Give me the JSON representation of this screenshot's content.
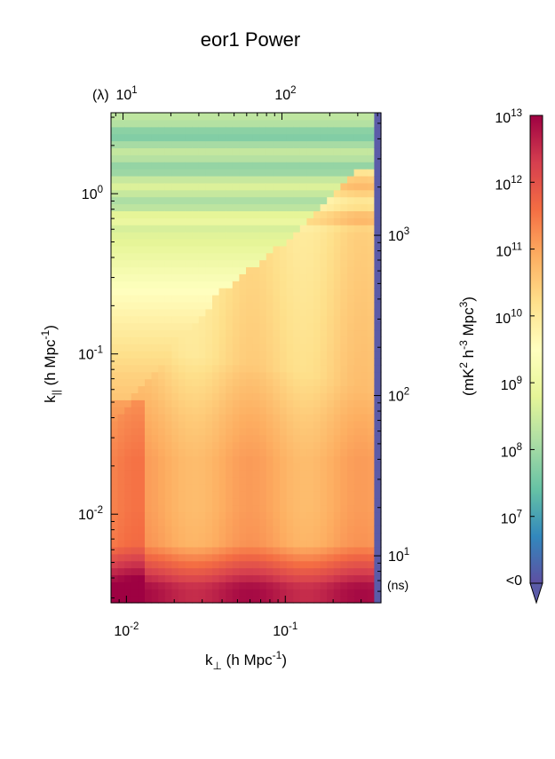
{
  "chart_data": {
    "type": "heatmap",
    "title": "eor1 Power",
    "xlabel": {
      "main": "k",
      "sub": "⊥",
      "post": " (h Mpc",
      "sup": "-1",
      "end": ")"
    },
    "ylabel": {
      "main": "k",
      "sub": "||",
      "post": " (h Mpc",
      "sup": "-1",
      "end": ")"
    },
    "x_scale": "log",
    "y_scale": "log",
    "xlim": [
      0.008,
      0.4
    ],
    "ylim": [
      0.0028,
      3.2
    ],
    "x_ticks": [
      {
        "value": 0.01,
        "base": "10",
        "exp": "-2"
      },
      {
        "value": 0.1,
        "base": "10",
        "exp": "-1"
      }
    ],
    "y_ticks": [
      {
        "value": 0.01,
        "base": "10",
        "exp": "-2"
      },
      {
        "value": 0.1,
        "base": "10",
        "exp": "-1"
      },
      {
        "value": 1,
        "base": "10",
        "exp": "0"
      }
    ],
    "top_axis": {
      "unit_label": "(λ)",
      "ticks": [
        {
          "value": 10,
          "base": "10",
          "exp": "1"
        },
        {
          "value": 100,
          "base": "10",
          "exp": "2"
        }
      ]
    },
    "right_axis": {
      "unit_label": "(ns)",
      "ticks": [
        {
          "value": 10,
          "base": "10",
          "exp": "1"
        },
        {
          "value": 100,
          "base": "10",
          "exp": "2"
        },
        {
          "value": 1000,
          "base": "10",
          "exp": "3"
        }
      ]
    },
    "colorbar": {
      "label": {
        "pre": "(mK",
        "sup1": "2",
        "mid1": " h",
        "sup2": "-3",
        "mid2": " Mpc",
        "sup3": "3",
        "end": ")"
      },
      "scale": "log",
      "range": [
        1000000,
        10000000000000
      ],
      "ticks": [
        {
          "value": 10000000,
          "base": "10",
          "exp": "7"
        },
        {
          "value": 100000000,
          "base": "10",
          "exp": "8"
        },
        {
          "value": 1000000000,
          "base": "10",
          "exp": "9"
        },
        {
          "value": 10000000000,
          "base": "10",
          "exp": "10"
        },
        {
          "value": 100000000000,
          "base": "10",
          "exp": "11"
        },
        {
          "value": 1000000000000,
          "base": "10",
          "exp": "12"
        },
        {
          "value": 10000000000000,
          "base": "10",
          "exp": "13"
        }
      ],
      "below_label": "<0",
      "below_color": "#5b5ba8"
    },
    "colormap": [
      "#5e4fa2",
      "#3288bd",
      "#66c2a5",
      "#abdda4",
      "#e6f598",
      "#ffffbf",
      "#fee08b",
      "#fdae61",
      "#f46d43",
      "#d53e4f",
      "#9e0142"
    ],
    "kpar_bands": [
      {
        "k": 0.0035,
        "log10_power": 12.7
      },
      {
        "k": 0.0065,
        "log10_power": 11.0
      },
      {
        "k": 0.011,
        "log10_power": 10.9
      },
      {
        "k": 0.022,
        "log10_power": 10.9
      },
      {
        "k": 0.04,
        "log10_power": 10.7
      },
      {
        "k": 0.075,
        "log10_power": 10.4
      },
      {
        "k": 0.13,
        "log10_power": 10.0
      },
      {
        "k": 0.25,
        "log10_power": 9.5
      },
      {
        "k": 0.5,
        "log10_power": 8.8
      },
      {
        "k": 1.0,
        "log10_power": 8.4
      },
      {
        "k": 2.0,
        "log10_power": 8.0
      }
    ],
    "kperp_values": [
      0.009,
      0.012,
      0.02,
      0.05,
      0.1,
      0.2,
      0.33
    ],
    "wedge_edge": [
      {
        "kperp": 0.04,
        "kpar": 0.25
      },
      {
        "kperp": 0.1,
        "kpar": 0.5
      },
      {
        "kperp": 0.3,
        "kpar": 1.5
      }
    ],
    "negative_columns_kperp": [
      0.35,
      0.4
    ],
    "grid": false,
    "legend": "none"
  }
}
